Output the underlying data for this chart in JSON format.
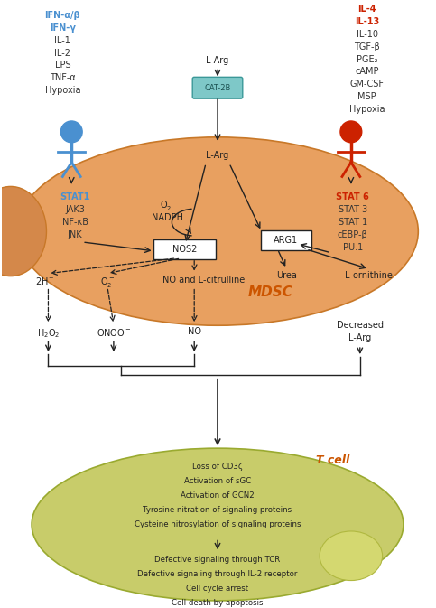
{
  "bg_color": "#ffffff",
  "orange_color": "#e8a060",
  "orange_dark": "#c87828",
  "orange_semi": "#d4884a",
  "green_color": "#c8cc6a",
  "green_dark": "#9aaa30",
  "blue": "#4a90d0",
  "red": "#cc2200",
  "black": "#222222",
  "mdsc_orange_label": "#cc5500",
  "tcell_label_color": "#cc5500",
  "left_signals": [
    {
      "text": "IFN-α/β",
      "color": "#4a90d0",
      "bold": true
    },
    {
      "text": "IFN-γ",
      "color": "#4a90d0",
      "bold": true
    },
    {
      "text": "IL-1",
      "color": "#333333",
      "bold": false
    },
    {
      "text": "IL-2",
      "color": "#333333",
      "bold": false
    },
    {
      "text": "LPS",
      "color": "#333333",
      "bold": false
    },
    {
      "text": "TNF-α",
      "color": "#333333",
      "bold": false
    },
    {
      "text": "Hypoxia",
      "color": "#333333",
      "bold": false
    }
  ],
  "right_signals": [
    {
      "text": "IL-4",
      "color": "#cc2200",
      "bold": true
    },
    {
      "text": "IL-13",
      "color": "#cc2200",
      "bold": true
    },
    {
      "text": "IL-10",
      "color": "#333333",
      "bold": false
    },
    {
      "text": "TGF-β",
      "color": "#333333",
      "bold": false
    },
    {
      "text": "PGE₂",
      "color": "#333333",
      "bold": false
    },
    {
      "text": "cAMP",
      "color": "#333333",
      "bold": false
    },
    {
      "text": "GM-CSF",
      "color": "#333333",
      "bold": false
    },
    {
      "text": "MSP",
      "color": "#333333",
      "bold": false
    },
    {
      "text": "Hypoxia",
      "color": "#333333",
      "bold": false
    }
  ],
  "left_tfs": [
    {
      "text": "STAT1",
      "color": "#4a90d0",
      "bold": true
    },
    {
      "text": "JAK3",
      "color": "#333333",
      "bold": false
    },
    {
      "text": "NF-κB",
      "color": "#333333",
      "bold": false
    },
    {
      "text": "JNK",
      "color": "#333333",
      "bold": false
    }
  ],
  "right_tfs": [
    {
      "text": "STAT 6",
      "color": "#cc2200",
      "bold": true
    },
    {
      "text": "STAT 3",
      "color": "#333333",
      "bold": false
    },
    {
      "text": "STAT 1",
      "color": "#333333",
      "bold": false
    },
    {
      "text": "cEBP-β",
      "color": "#333333",
      "bold": false
    },
    {
      "text": "PU.1",
      "color": "#333333",
      "bold": false
    }
  ],
  "tcell_lines1": [
    "Loss of CD3ζ",
    "Activation of sGC",
    "Activation of GCN2",
    "Tyrosine nitration of signaling proteins",
    "Cysteine nitrosylation of signaling proteins"
  ],
  "tcell_lines2": [
    "Defective signaling through TCR",
    "Defective signaling through IL-2 receptor",
    "Cell cycle arrest",
    "Cell death by apoptosis"
  ]
}
